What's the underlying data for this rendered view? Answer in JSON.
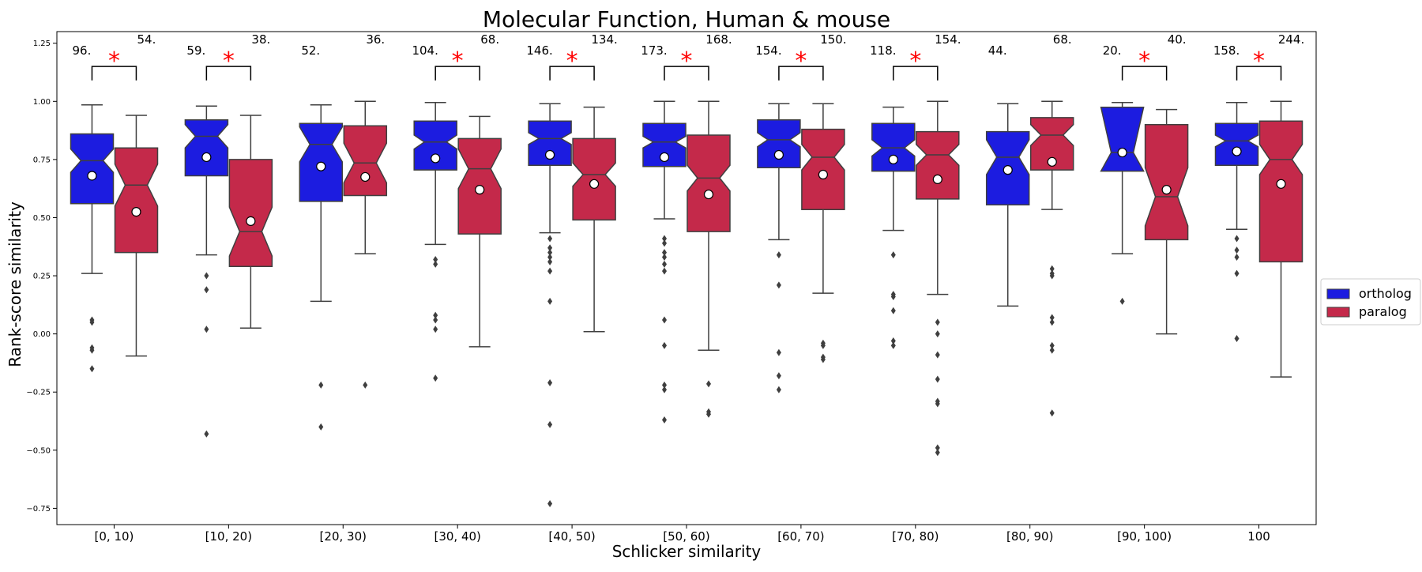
{
  "chart_data": {
    "type": "box",
    "title": "Molecular Function, Human & mouse",
    "xlabel": "Schlicker similarity",
    "ylabel": "Rank-score similarity",
    "ylim": [
      -0.82,
      1.3
    ],
    "yticks": [
      "1.25",
      "1.00",
      "0.75",
      "0.50",
      "0.25",
      "0.00",
      "−0.25",
      "−0.50",
      "−0.75"
    ],
    "ytick_values": [
      1.25,
      1.0,
      0.75,
      0.5,
      0.25,
      0.0,
      -0.25,
      -0.5,
      -0.75
    ],
    "categories": [
      "[0, 10)",
      "[10, 20)",
      "[20, 30)",
      "[30, 40)",
      "[40, 50)",
      "[50, 60)",
      "[60, 70)",
      "[70, 80)",
      "[80, 90)",
      "[90, 100)",
      "100"
    ],
    "legend": {
      "position": "right",
      "entries": [
        "ortholog",
        "paralog"
      ]
    },
    "colors": {
      "ortholog": "#1c1ce0",
      "paralog": "#c4294a",
      "significance": "#ff0000",
      "whisker": "#3f3f3f"
    },
    "notched": true,
    "significance_symbol": "*",
    "series": [
      {
        "name": "ortholog",
        "counts": [
          "96.",
          "59.",
          "52.",
          "104.",
          "146.",
          "173.",
          "154.",
          "118.",
          "44.",
          "20.",
          "158."
        ],
        "boxes": [
          {
            "q1": 0.56,
            "median": 0.745,
            "q3": 0.86,
            "notch_low": 0.695,
            "notch_high": 0.795,
            "whisker_low": 0.26,
            "whisker_high": 0.985,
            "mean": 0.68,
            "outliers": [
              0.06,
              0.05,
              -0.06,
              -0.07,
              -0.15
            ]
          },
          {
            "q1": 0.68,
            "median": 0.85,
            "q3": 0.92,
            "notch_low": 0.8,
            "notch_high": 0.9,
            "whisker_low": 0.34,
            "whisker_high": 0.98,
            "mean": 0.76,
            "outliers": [
              0.25,
              0.19,
              0.02,
              -0.43
            ]
          },
          {
            "q1": 0.57,
            "median": 0.815,
            "q3": 0.905,
            "notch_low": 0.74,
            "notch_high": 0.89,
            "whisker_low": 0.14,
            "whisker_high": 0.985,
            "mean": 0.72,
            "outliers": [
              -0.22,
              -0.4
            ]
          },
          {
            "q1": 0.705,
            "median": 0.825,
            "q3": 0.915,
            "notch_low": 0.795,
            "notch_high": 0.855,
            "whisker_low": 0.385,
            "whisker_high": 0.995,
            "mean": 0.755,
            "outliers": [
              0.32,
              0.3,
              0.08,
              0.06,
              0.02,
              -0.19
            ]
          },
          {
            "q1": 0.725,
            "median": 0.84,
            "q3": 0.915,
            "notch_low": 0.815,
            "notch_high": 0.865,
            "whisker_low": 0.435,
            "whisker_high": 0.99,
            "mean": 0.77,
            "outliers": [
              0.41,
              0.37,
              0.35,
              0.33,
              0.31,
              0.27,
              0.14,
              -0.21,
              -0.39,
              -0.73
            ]
          },
          {
            "q1": 0.72,
            "median": 0.825,
            "q3": 0.905,
            "notch_low": 0.8,
            "notch_high": 0.85,
            "whisker_low": 0.495,
            "whisker_high": 1.0,
            "mean": 0.76,
            "outliers": [
              0.41,
              0.39,
              0.35,
              0.33,
              0.3,
              0.27,
              0.06,
              -0.05,
              -0.22,
              -0.24,
              -0.37
            ]
          },
          {
            "q1": 0.715,
            "median": 0.835,
            "q3": 0.92,
            "notch_low": 0.805,
            "notch_high": 0.865,
            "whisker_low": 0.405,
            "whisker_high": 0.99,
            "mean": 0.77,
            "outliers": [
              0.34,
              0.21,
              -0.08,
              -0.18,
              -0.24
            ]
          },
          {
            "q1": 0.7,
            "median": 0.8,
            "q3": 0.905,
            "notch_low": 0.765,
            "notch_high": 0.835,
            "whisker_low": 0.445,
            "whisker_high": 0.975,
            "mean": 0.75,
            "outliers": [
              0.34,
              0.17,
              0.16,
              0.1,
              -0.03,
              -0.05
            ]
          },
          {
            "q1": 0.555,
            "median": 0.76,
            "q3": 0.87,
            "notch_low": 0.685,
            "notch_high": 0.835,
            "whisker_low": 0.12,
            "whisker_high": 0.99,
            "mean": 0.705,
            "outliers": []
          },
          {
            "q1": 0.7,
            "median": 0.78,
            "q3": 0.975,
            "notch_low": 0.7,
            "notch_high": 0.975,
            "whisker_low": 0.345,
            "whisker_high": 0.995,
            "mean": 0.78,
            "outliers": [
              0.14
            ]
          },
          {
            "q1": 0.725,
            "median": 0.83,
            "q3": 0.905,
            "notch_low": 0.805,
            "notch_high": 0.855,
            "whisker_low": 0.45,
            "whisker_high": 0.995,
            "mean": 0.785,
            "outliers": [
              0.41,
              0.36,
              0.33,
              0.26,
              -0.02
            ]
          }
        ]
      },
      {
        "name": "paralog",
        "counts": [
          "54.",
          "38.",
          "36.",
          "68.",
          "134.",
          "168.",
          "150.",
          "154.",
          "68.",
          "40.",
          "244."
        ],
        "boxes": [
          {
            "q1": 0.35,
            "median": 0.64,
            "q3": 0.8,
            "notch_low": 0.55,
            "notch_high": 0.73,
            "whisker_low": -0.095,
            "whisker_high": 0.94,
            "mean": 0.525,
            "outliers": []
          },
          {
            "q1": 0.29,
            "median": 0.44,
            "q3": 0.75,
            "notch_low": 0.335,
            "notch_high": 0.545,
            "whisker_low": 0.025,
            "whisker_high": 0.94,
            "mean": 0.485,
            "outliers": []
          },
          {
            "q1": 0.595,
            "median": 0.735,
            "q3": 0.895,
            "notch_low": 0.65,
            "notch_high": 0.82,
            "whisker_low": 0.345,
            "whisker_high": 1.0,
            "mean": 0.675,
            "outliers": [
              -0.22
            ]
          },
          {
            "q1": 0.43,
            "median": 0.71,
            "q3": 0.84,
            "notch_low": 0.625,
            "notch_high": 0.795,
            "whisker_low": -0.055,
            "whisker_high": 0.935,
            "mean": 0.62,
            "outliers": []
          },
          {
            "q1": 0.49,
            "median": 0.685,
            "q3": 0.84,
            "notch_low": 0.635,
            "notch_high": 0.735,
            "whisker_low": 0.01,
            "whisker_high": 0.975,
            "mean": 0.645,
            "outliers": []
          },
          {
            "q1": 0.44,
            "median": 0.67,
            "q3": 0.855,
            "notch_low": 0.615,
            "notch_high": 0.725,
            "whisker_low": -0.07,
            "whisker_high": 1.0,
            "mean": 0.6,
            "outliers": [
              -0.215,
              -0.335,
              -0.345
            ]
          },
          {
            "q1": 0.535,
            "median": 0.76,
            "q3": 0.88,
            "notch_low": 0.705,
            "notch_high": 0.815,
            "whisker_low": 0.175,
            "whisker_high": 0.99,
            "mean": 0.685,
            "outliers": [
              -0.04,
              -0.05,
              -0.1,
              -0.11
            ]
          },
          {
            "q1": 0.58,
            "median": 0.77,
            "q3": 0.87,
            "notch_low": 0.725,
            "notch_high": 0.815,
            "whisker_low": 0.17,
            "whisker_high": 1.0,
            "mean": 0.665,
            "outliers": [
              0.05,
              0.0,
              -0.09,
              -0.195,
              -0.29,
              -0.3,
              -0.49,
              -0.51
            ]
          },
          {
            "q1": 0.705,
            "median": 0.855,
            "q3": 0.93,
            "notch_low": 0.81,
            "notch_high": 0.9,
            "whisker_low": 0.535,
            "whisker_high": 1.0,
            "mean": 0.74,
            "outliers": [
              0.28,
              0.26,
              0.25,
              0.07,
              0.05,
              -0.05,
              -0.07,
              -0.34
            ]
          },
          {
            "q1": 0.405,
            "median": 0.59,
            "q3": 0.9,
            "notch_low": 0.465,
            "notch_high": 0.715,
            "whisker_low": 0.0,
            "whisker_high": 0.965,
            "mean": 0.62,
            "outliers": []
          },
          {
            "q1": 0.31,
            "median": 0.75,
            "q3": 0.915,
            "notch_low": 0.685,
            "notch_high": 0.815,
            "whisker_low": -0.185,
            "whisker_high": 1.0,
            "mean": 0.645,
            "outliers": []
          }
        ]
      }
    ],
    "significant": [
      true,
      true,
      false,
      true,
      true,
      true,
      true,
      true,
      false,
      true,
      true
    ]
  }
}
